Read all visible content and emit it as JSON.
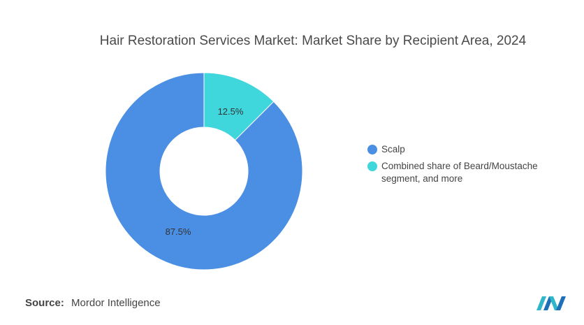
{
  "chart_data": {
    "type": "pie",
    "donut": true,
    "title": "Hair Restoration Services Market: Market Share by Recipient Area, 2024",
    "categories": [
      "Scalp",
      "Combined share of Beard/Moustache segment, and more"
    ],
    "values": [
      87.5,
      12.5
    ],
    "value_labels": [
      "87.5%",
      "12.5%"
    ],
    "colors": [
      "#4a8fe3",
      "#3fd6dc"
    ],
    "legend_placement": "right"
  },
  "legend": {
    "items": [
      {
        "label": "Scalp",
        "color": "#4a8fe3"
      },
      {
        "label": "Combined share of Beard/Moustache segment, and more",
        "color": "#3fd6dc"
      }
    ]
  },
  "footer": {
    "source_label": "Source:",
    "source_value": "Mordor Intelligence",
    "logo_icon": "mordor-intelligence-logo-icon"
  }
}
